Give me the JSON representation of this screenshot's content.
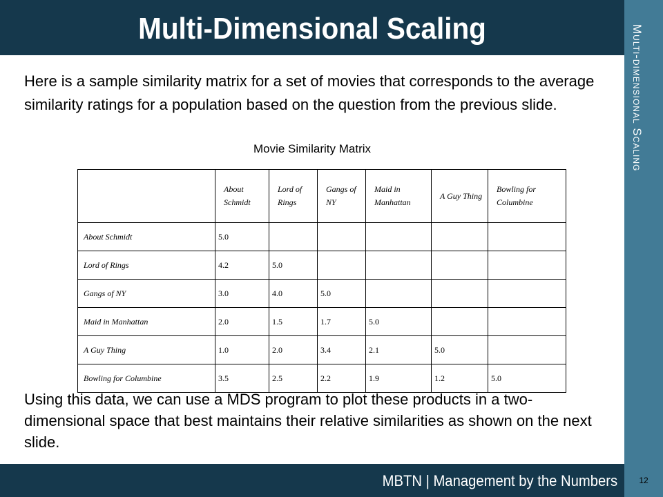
{
  "slide": {
    "title": "Multi-Dimensional Scaling",
    "section_label": "Multi-dimensional Scaling",
    "intro": "Here is a sample similarity matrix for a set of movies that corresponds to the average similarity ratings for a population based on the question from the previous slide.",
    "caption": "Movie Similarity Matrix",
    "outro": "Using this data, we can use a MDS program to plot these products in a two-dimensional space that best maintains their relative similarities as shown on the next slide.",
    "footer": "MBTN | Management by the Numbers",
    "page_number": "12"
  },
  "colors": {
    "title_bar": "#15384c",
    "side_band": "#427b96"
  },
  "table": {
    "columns": [
      "About Schmidt",
      "Lord of Rings",
      "Gangs of NY",
      "Maid in Manhattan",
      "A Guy Thing",
      "Bowling for Columbine"
    ],
    "rows": [
      {
        "label": "About Schmidt",
        "values": [
          "5.0",
          "",
          "",
          "",
          "",
          ""
        ]
      },
      {
        "label": "Lord of Rings",
        "values": [
          "4.2",
          "5.0",
          "",
          "",
          "",
          ""
        ]
      },
      {
        "label": "Gangs of NY",
        "values": [
          "3.0",
          "4.0",
          "5.0",
          "",
          "",
          ""
        ]
      },
      {
        "label": "Maid in Manhattan",
        "values": [
          "2.0",
          "1.5",
          "1.7",
          "5.0",
          "",
          ""
        ]
      },
      {
        "label": "A Guy Thing",
        "values": [
          "1.0",
          "2.0",
          "3.4",
          "2.1",
          "5.0",
          ""
        ]
      },
      {
        "label": "Bowling for Columbine",
        "values": [
          "3.5",
          "2.5",
          "2.2",
          "1.9",
          "1.2",
          "5.0"
        ]
      }
    ]
  }
}
